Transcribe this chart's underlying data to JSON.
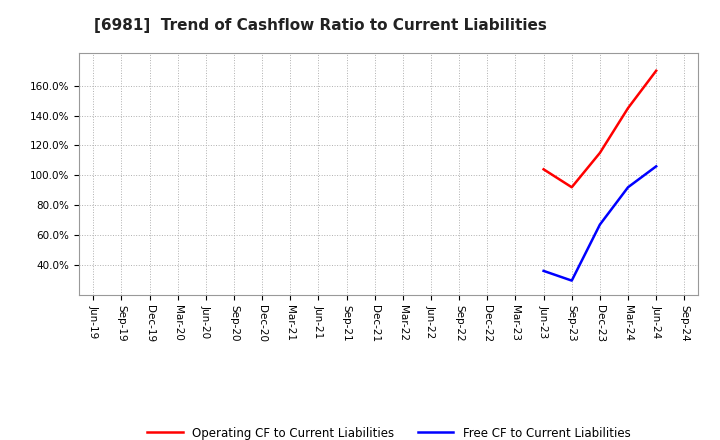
{
  "title": "[6981]  Trend of Cashflow Ratio to Current Liabilities",
  "title_fontsize": 11,
  "background_color": "#ffffff",
  "plot_bg_color": "#ffffff",
  "grid_color": "#b0b0b0",
  "x_tick_labels": [
    "Jun-19",
    "Sep-19",
    "Dec-19",
    "Mar-20",
    "Jun-20",
    "Sep-20",
    "Dec-20",
    "Mar-21",
    "Jun-21",
    "Sep-21",
    "Dec-21",
    "Mar-22",
    "Jun-22",
    "Sep-22",
    "Dec-22",
    "Mar-23",
    "Jun-23",
    "Sep-23",
    "Dec-23",
    "Mar-24",
    "Jun-24",
    "Sep-24"
  ],
  "operating_cf": {
    "x_indices": [
      16,
      17,
      18,
      19,
      20
    ],
    "values": [
      1.04,
      0.92,
      1.15,
      1.45,
      1.7
    ],
    "color": "#ff0000",
    "label": "Operating CF to Current Liabilities",
    "linewidth": 1.8
  },
  "free_cf": {
    "x_indices": [
      16,
      17,
      18,
      19,
      20
    ],
    "values": [
      0.36,
      0.295,
      0.67,
      0.92,
      1.06
    ],
    "color": "#0000ff",
    "label": "Free CF to Current Liabilities",
    "linewidth": 1.8
  },
  "yticks": [
    0.4,
    0.6,
    0.8,
    1.0,
    1.2,
    1.4,
    1.6
  ],
  "ytick_labels": [
    "40.0%",
    "60.0%",
    "80.0%",
    "100.0%",
    "120.0%",
    "140.0%",
    "160.0%"
  ],
  "ymin": 0.2,
  "ymax": 1.82,
  "legend_ncol": 2,
  "tick_fontsize": 7.5,
  "legend_fontsize": 8.5
}
